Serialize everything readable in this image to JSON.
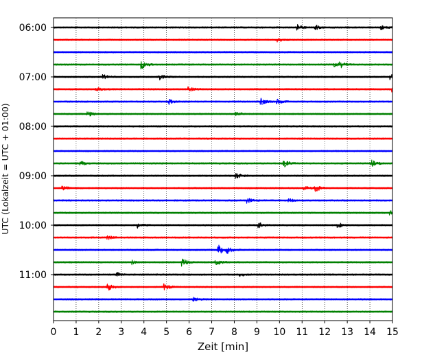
{
  "chart_data": {
    "type": "line",
    "title": "",
    "xlabel": "Zeit  [min]",
    "ylabel": "UTC (Lokalzeit = UTC + 01:00)",
    "xlim": [
      0,
      15
    ],
    "x_ticks": [
      "0",
      "1",
      "2",
      "3",
      "4",
      "5",
      "6",
      "7",
      "8",
      "9",
      "10",
      "11",
      "12",
      "13",
      "14",
      "15"
    ],
    "y_tick_labels": [
      "06:00",
      "07:00",
      "08:00",
      "09:00",
      "10:00",
      "11:00"
    ],
    "grid": "vertical dotted",
    "trace_minutes": 15,
    "color_cycle": [
      "#000000",
      "#ff0000",
      "#0000ff",
      "#008000"
    ],
    "traces": [
      {
        "start": "06:00",
        "color": "#000000"
      },
      {
        "start": "06:15",
        "color": "#ff0000"
      },
      {
        "start": "06:30",
        "color": "#0000ff"
      },
      {
        "start": "06:45",
        "color": "#008000"
      },
      {
        "start": "07:00",
        "color": "#000000"
      },
      {
        "start": "07:15",
        "color": "#ff0000"
      },
      {
        "start": "07:30",
        "color": "#0000ff"
      },
      {
        "start": "07:45",
        "color": "#008000"
      },
      {
        "start": "08:00",
        "color": "#000000"
      },
      {
        "start": "08:15",
        "color": "#ff0000"
      },
      {
        "start": "08:30",
        "color": "#0000ff"
      },
      {
        "start": "08:45",
        "color": "#008000"
      },
      {
        "start": "09:00",
        "color": "#000000"
      },
      {
        "start": "09:15",
        "color": "#ff0000"
      },
      {
        "start": "09:30",
        "color": "#0000ff"
      },
      {
        "start": "09:45",
        "color": "#008000"
      },
      {
        "start": "10:00",
        "color": "#000000"
      },
      {
        "start": "10:15",
        "color": "#ff0000"
      },
      {
        "start": "10:30",
        "color": "#0000ff"
      },
      {
        "start": "10:45",
        "color": "#008000"
      },
      {
        "start": "11:00",
        "color": "#000000"
      },
      {
        "start": "11:15",
        "color": "#ff0000"
      },
      {
        "start": "11:30",
        "color": "#0000ff"
      },
      {
        "start": "11:45",
        "color": "#008000"
      }
    ],
    "events": [
      {
        "trace": 0,
        "t": 10.8,
        "amp": 0.45
      },
      {
        "trace": 0,
        "t": 11.6,
        "amp": 0.35
      },
      {
        "trace": 0,
        "t": 14.5,
        "amp": 0.35
      },
      {
        "trace": 1,
        "t": 9.9,
        "amp": 0.3
      },
      {
        "trace": 3,
        "t": 3.9,
        "amp": 0.7
      },
      {
        "trace": 3,
        "t": 12.4,
        "amp": 0.3
      },
      {
        "trace": 3,
        "t": 12.7,
        "amp": 0.45
      },
      {
        "trace": 4,
        "t": 2.2,
        "amp": 0.35
      },
      {
        "trace": 4,
        "t": 4.7,
        "amp": 0.4
      },
      {
        "trace": 4,
        "t": 14.9,
        "amp": 0.4
      },
      {
        "trace": 5,
        "t": 1.9,
        "amp": 0.3
      },
      {
        "trace": 5,
        "t": 6.0,
        "amp": 0.35
      },
      {
        "trace": 5,
        "t": 15.0,
        "amp": 0.45
      },
      {
        "trace": 6,
        "t": 5.1,
        "amp": 0.4
      },
      {
        "trace": 6,
        "t": 9.2,
        "amp": 0.45
      },
      {
        "trace": 6,
        "t": 9.9,
        "amp": 0.35
      },
      {
        "trace": 7,
        "t": 1.5,
        "amp": 0.6
      },
      {
        "trace": 7,
        "t": 8.1,
        "amp": 0.3
      },
      {
        "trace": 11,
        "t": 1.2,
        "amp": 0.35
      },
      {
        "trace": 11,
        "t": 10.2,
        "amp": 0.6
      },
      {
        "trace": 11,
        "t": 14.1,
        "amp": 0.45
      },
      {
        "trace": 12,
        "t": 8.1,
        "amp": 0.4
      },
      {
        "trace": 13,
        "t": 0.4,
        "amp": 0.4
      },
      {
        "trace": 13,
        "t": 11.6,
        "amp": 0.55
      },
      {
        "trace": 13,
        "t": 11.1,
        "amp": 0.35
      },
      {
        "trace": 14,
        "t": 8.6,
        "amp": 0.4
      },
      {
        "trace": 14,
        "t": 10.4,
        "amp": 0.3
      },
      {
        "trace": 15,
        "t": 14.9,
        "amp": 0.3
      },
      {
        "trace": 16,
        "t": 3.7,
        "amp": 0.45
      },
      {
        "trace": 16,
        "t": 9.1,
        "amp": 0.4
      },
      {
        "trace": 16,
        "t": 12.6,
        "amp": 0.35
      },
      {
        "trace": 17,
        "t": 2.4,
        "amp": 0.3
      },
      {
        "trace": 18,
        "t": 7.3,
        "amp": 0.8
      },
      {
        "trace": 18,
        "t": 7.7,
        "amp": 0.45
      },
      {
        "trace": 19,
        "t": 5.7,
        "amp": 0.6
      },
      {
        "trace": 19,
        "t": 7.2,
        "amp": 0.45
      },
      {
        "trace": 19,
        "t": 3.5,
        "amp": 0.3
      },
      {
        "trace": 20,
        "t": 2.8,
        "amp": 0.3
      },
      {
        "trace": 20,
        "t": 8.2,
        "amp": 0.3
      },
      {
        "trace": 21,
        "t": 2.4,
        "amp": 0.55
      },
      {
        "trace": 21,
        "t": 4.9,
        "amp": 0.45
      },
      {
        "trace": 22,
        "t": 6.2,
        "amp": 0.3
      }
    ]
  }
}
